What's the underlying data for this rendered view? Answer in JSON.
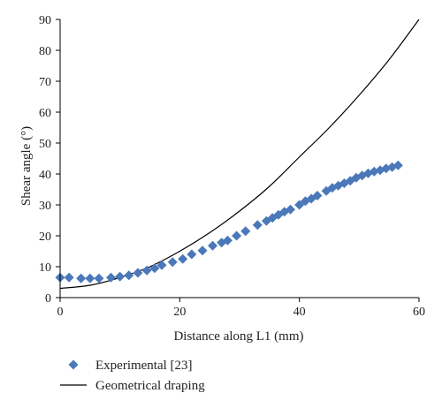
{
  "chart_data": {
    "type": "scatter",
    "title": "",
    "xlabel": "Distance along L1 (mm)",
    "ylabel": "Shear angle (°)",
    "xlim": [
      0,
      60
    ],
    "ylim": [
      0,
      90
    ],
    "xticks": [
      "0",
      "20",
      "40",
      "60"
    ],
    "yticks": [
      "0",
      "10",
      "20",
      "30",
      "40",
      "50",
      "60",
      "70",
      "80",
      "90"
    ],
    "grid": false,
    "legend": "bottom-left",
    "series": [
      {
        "name": "Experimental [23]",
        "kind": "markers",
        "marker": "diamond",
        "color": "#4a78b8",
        "x": [
          0,
          1.5,
          3.5,
          5,
          6.5,
          8.5,
          10,
          11.5,
          13,
          14.5,
          15.8,
          17,
          18.8,
          20.5,
          22,
          23.8,
          25.5,
          27,
          28,
          29.5,
          31,
          33,
          34.5,
          35.5,
          36.5,
          37.5,
          38.5,
          40,
          41,
          42,
          43,
          44.5,
          45.5,
          46.5,
          47.5,
          48.5,
          49.5,
          50.5,
          51.5,
          52.5,
          53.5,
          54.5,
          55.5,
          56.5
        ],
        "y": [
          6.5,
          6.5,
          6.2,
          6.2,
          6.2,
          6.5,
          6.8,
          7.2,
          8,
          8.8,
          9.5,
          10.5,
          11.5,
          12.5,
          14,
          15.2,
          16.8,
          17.8,
          18.5,
          20,
          21.5,
          23.5,
          24.8,
          25.8,
          26.8,
          27.8,
          28.5,
          30,
          31.2,
          32,
          33,
          34.5,
          35.5,
          36.2,
          37,
          37.8,
          38.8,
          39.5,
          40.2,
          40.8,
          41.2,
          41.8,
          42.2,
          42.8
        ]
      },
      {
        "name": "Geometrical draping",
        "kind": "line",
        "color": "#000000",
        "x": [
          0,
          5,
          10,
          15,
          20,
          25,
          30,
          35,
          40,
          45,
          50,
          55,
          60
        ],
        "y": [
          3,
          4,
          6.5,
          10,
          15,
          21,
          28,
          36,
          45.5,
          55,
          65.5,
          77,
          90
        ]
      }
    ]
  }
}
